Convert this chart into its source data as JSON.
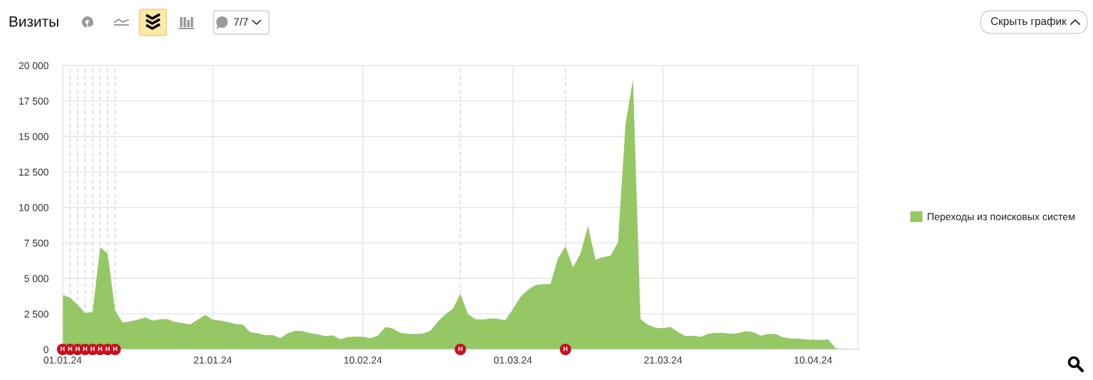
{
  "chart_data": {
    "type": "area",
    "title": "Визиты",
    "x": [
      "2024-01-01",
      "2024-01-02",
      "2024-01-03",
      "2024-01-04",
      "2024-01-05",
      "2024-01-06",
      "2024-01-07",
      "2024-01-08",
      "2024-01-09",
      "2024-01-10",
      "2024-01-11",
      "2024-01-12",
      "2024-01-13",
      "2024-01-14",
      "2024-01-15",
      "2024-01-16",
      "2024-01-17",
      "2024-01-18",
      "2024-01-19",
      "2024-01-20",
      "2024-01-21",
      "2024-01-22",
      "2024-01-23",
      "2024-01-24",
      "2024-01-25",
      "2024-01-26",
      "2024-01-27",
      "2024-01-28",
      "2024-01-29",
      "2024-01-30",
      "2024-01-31",
      "2024-02-01",
      "2024-02-02",
      "2024-02-03",
      "2024-02-04",
      "2024-02-05",
      "2024-02-06",
      "2024-02-07",
      "2024-02-08",
      "2024-02-09",
      "2024-02-10",
      "2024-02-11",
      "2024-02-12",
      "2024-02-13",
      "2024-02-14",
      "2024-02-15",
      "2024-02-16",
      "2024-02-17",
      "2024-02-18",
      "2024-02-19",
      "2024-02-20",
      "2024-02-21",
      "2024-02-22",
      "2024-02-23",
      "2024-02-24",
      "2024-02-25",
      "2024-02-26",
      "2024-02-27",
      "2024-02-28",
      "2024-02-29",
      "2024-03-01",
      "2024-03-02",
      "2024-03-03",
      "2024-03-04",
      "2024-03-05",
      "2024-03-06",
      "2024-03-07",
      "2024-03-08",
      "2024-03-09",
      "2024-03-10",
      "2024-03-11",
      "2024-03-12",
      "2024-03-13",
      "2024-03-14",
      "2024-03-15",
      "2024-03-16",
      "2024-03-17",
      "2024-03-18",
      "2024-03-19",
      "2024-03-20",
      "2024-03-21",
      "2024-03-22",
      "2024-03-23",
      "2024-03-24",
      "2024-03-25",
      "2024-03-26",
      "2024-03-27",
      "2024-03-28",
      "2024-03-29",
      "2024-03-30",
      "2024-03-31",
      "2024-04-01",
      "2024-04-02",
      "2024-04-03",
      "2024-04-04",
      "2024-04-05",
      "2024-04-06",
      "2024-04-07",
      "2024-04-08",
      "2024-04-09",
      "2024-04-10",
      "2024-04-11",
      "2024-04-12",
      "2024-04-13",
      "2024-04-14",
      "2024-04-15",
      "2024-04-16"
    ],
    "series": [
      {
        "name": "Переходы из поисковых систем",
        "color": "#95c865",
        "values": [
          3850,
          3650,
          3150,
          2560,
          2650,
          7200,
          6750,
          2730,
          1890,
          1980,
          2090,
          2260,
          2030,
          2130,
          2130,
          1930,
          1860,
          1760,
          2090,
          2430,
          2090,
          2030,
          1930,
          1790,
          1760,
          1220,
          1140,
          1000,
          1020,
          790,
          1140,
          1320,
          1290,
          1140,
          1060,
          940,
          990,
          720,
          860,
          900,
          890,
          790,
          970,
          1580,
          1460,
          1170,
          1100,
          1090,
          1120,
          1310,
          1960,
          2480,
          2860,
          3940,
          2480,
          2130,
          2110,
          2180,
          2160,
          2060,
          2850,
          3700,
          4200,
          4540,
          4600,
          4600,
          6410,
          7250,
          5780,
          6750,
          8700,
          6310,
          6500,
          6610,
          7550,
          15870,
          19020,
          2140,
          1730,
          1530,
          1490,
          1590,
          1220,
          940,
          970,
          890,
          1100,
          1170,
          1170,
          1100,
          1140,
          1290,
          1220,
          970,
          1090,
          1090,
          840,
          770,
          770,
          700,
          690,
          660,
          700,
          90,
          40,
          20,
          20
        ]
      }
    ],
    "xlim": [
      "2024-01-01",
      "2024-04-16"
    ],
    "xticks": [
      {
        "value": "2024-01-01",
        "label": "01.01.24"
      },
      {
        "value": "2024-01-21",
        "label": "21.01.24"
      },
      {
        "value": "2024-02-10",
        "label": "10.02.24"
      },
      {
        "value": "2024-03-01",
        "label": "01.03.24"
      },
      {
        "value": "2024-03-21",
        "label": "21.03.24"
      },
      {
        "value": "2024-04-10",
        "label": "10.04.24"
      }
    ],
    "ylim": [
      0,
      20000
    ],
    "yticks": [
      0,
      {
        "value": 2500,
        "label": "2 500"
      },
      {
        "value": 5000,
        "label": "5 000"
      },
      {
        "value": 7500,
        "label": "7 500"
      },
      {
        "value": 10000,
        "label": "10 000"
      },
      {
        "value": 12500,
        "label": "12 500"
      },
      {
        "value": 15000,
        "label": "15 000"
      },
      {
        "value": 17500,
        "label": "17 500"
      },
      {
        "value": 20000,
        "label": "20 000"
      }
    ],
    "grid": true,
    "legend": "right",
    "ref_lines": [
      {
        "axis": "x",
        "value": "2024-01-01",
        "label": "Н",
        "color": "#d6d6d6",
        "line_style": "dashed"
      },
      {
        "axis": "x",
        "value": "2024-01-02",
        "label": "Н",
        "color": "#d6d6d6",
        "line_style": "dashed"
      },
      {
        "axis": "x",
        "value": "2024-01-03",
        "label": "Н",
        "color": "#d6d6d6",
        "line_style": "dashed"
      },
      {
        "axis": "x",
        "value": "2024-01-04",
        "label": "Н",
        "color": "#d6d6d6",
        "line_style": "dashed"
      },
      {
        "axis": "x",
        "value": "2024-01-05",
        "label": "Н",
        "color": "#d6d6d6",
        "line_style": "dashed"
      },
      {
        "axis": "x",
        "value": "2024-01-06",
        "label": "Н",
        "color": "#d6d6d6",
        "line_style": "dashed"
      },
      {
        "axis": "x",
        "value": "2024-01-07",
        "label": "Н",
        "color": "#d6d6d6",
        "line_style": "dashed"
      },
      {
        "axis": "x",
        "value": "2024-01-08",
        "label": "Н",
        "color": "#d6d6d6",
        "line_style": "dashed"
      },
      {
        "axis": "x",
        "value": "2024-02-23",
        "label": "Н",
        "color": "#d6d6d6",
        "line_style": "dashed"
      },
      {
        "axis": "x",
        "value": "2024-03-08",
        "label": "Н",
        "color": "#d6d6d6",
        "line_style": "dashed"
      }
    ],
    "annotations": [
      "7/7",
      "Скрыть график"
    ]
  }
}
